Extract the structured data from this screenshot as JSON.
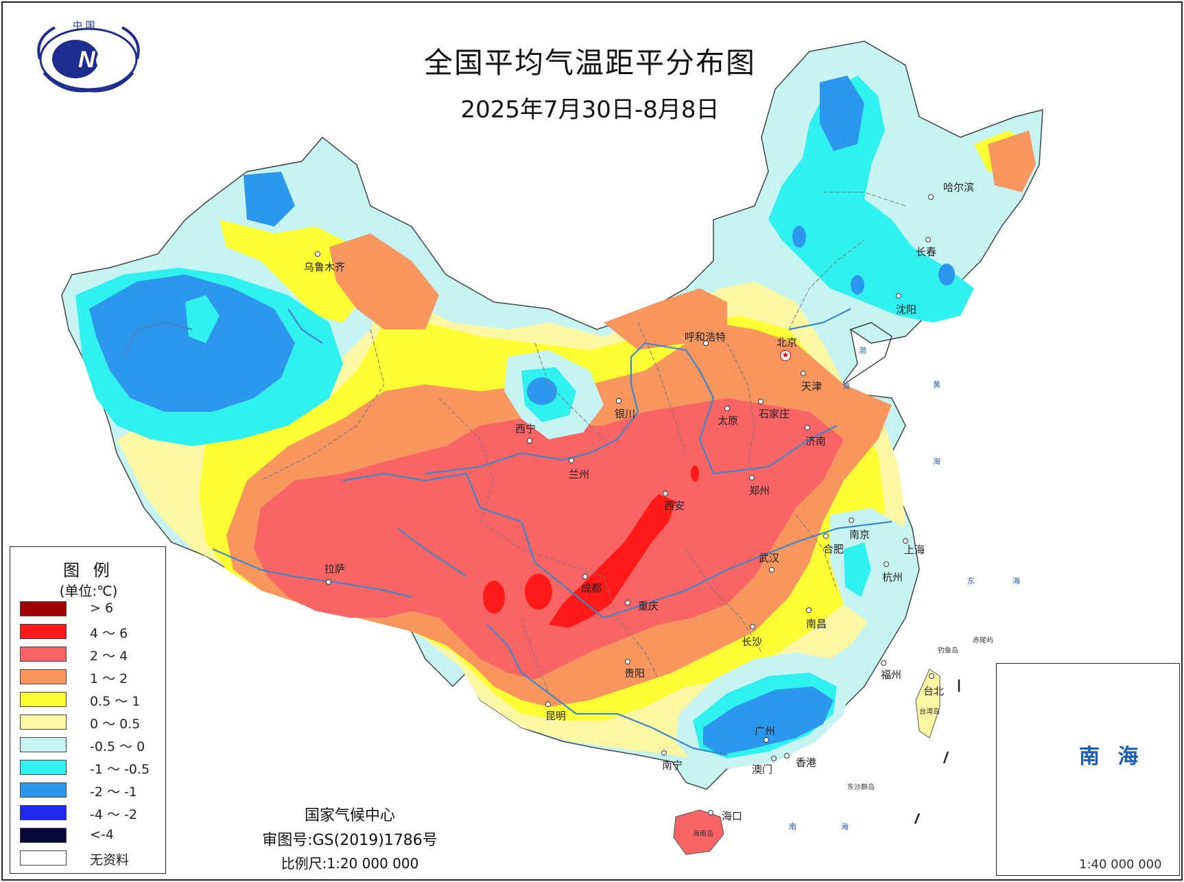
{
  "map": {
    "title": "全国平均气温距平分布图",
    "subtitle": "2025年7月30日-8月8日"
  },
  "logo": {
    "top_text": "中 国",
    "text": "NCC"
  },
  "cities": [
    {
      "name": "乌鲁木齐"
    },
    {
      "name": "呼和浩特"
    },
    {
      "name": "北京"
    },
    {
      "name": "天津"
    },
    {
      "name": "哈尔滨"
    },
    {
      "name": "长春"
    },
    {
      "name": "沈阳"
    },
    {
      "name": "银川"
    },
    {
      "name": "西宁"
    },
    {
      "name": "兰州"
    },
    {
      "name": "太原"
    },
    {
      "name": "石家庄"
    },
    {
      "name": "济南"
    },
    {
      "name": "郑州"
    },
    {
      "name": "西安"
    },
    {
      "name": "拉萨"
    },
    {
      "name": "成都"
    },
    {
      "name": "重庆"
    },
    {
      "name": "武汉"
    },
    {
      "name": "合肥"
    },
    {
      "name": "南京"
    },
    {
      "name": "上海"
    },
    {
      "name": "杭州"
    },
    {
      "name": "南昌"
    },
    {
      "name": "长沙"
    },
    {
      "name": "贵阳"
    },
    {
      "name": "昆明"
    },
    {
      "name": "福州"
    },
    {
      "name": "台北"
    },
    {
      "name": "广州"
    },
    {
      "name": "南宁"
    },
    {
      "name": "澳门"
    },
    {
      "name": "香港"
    },
    {
      "name": "海口"
    }
  ],
  "islands": {
    "taiwan": "台湾岛",
    "hainan": "海南岛",
    "diaoyu": "钓鱼岛",
    "chiwei": "赤尾屿",
    "dongsha": "东沙群岛"
  },
  "seas": {
    "bohai": "渤",
    "bohai2": "海",
    "huanghai": "黄",
    "huanghai2": "海",
    "donghai": "东",
    "donghai2": "海",
    "nanhai": "南",
    "nanhai2": "海"
  },
  "legend": {
    "title": "图 例",
    "unit": "(单位:℃)",
    "items": [
      {
        "label": "> 6",
        "color": "#a00000"
      },
      {
        "label": "4 ～ 6",
        "color": "#ff1a1a"
      },
      {
        "label": "2 ～ 4",
        "color": "#fa6464"
      },
      {
        "label": "1 ～ 2",
        "color": "#f7965e"
      },
      {
        "label": "0.5 ～ 1",
        "color": "#ffff33"
      },
      {
        "label": "0 ～ 0.5",
        "color": "#fbf7a4"
      },
      {
        "label": "-0.5 ～ 0",
        "color": "#c5f4f2"
      },
      {
        "label": "-1 ～ -0.5",
        "color": "#30f0f0"
      },
      {
        "label": "-2 ～ -1",
        "color": "#2d97ee"
      },
      {
        "label": "-4 ～ -2",
        "color": "#1e28ef"
      },
      {
        "label": "<-4",
        "color": "#07073a"
      },
      {
        "label": "无资料",
        "color": "#ffffff"
      }
    ]
  },
  "credits": {
    "agency": "国家气候中心",
    "approval": "审图号:GS(2019)1786号",
    "scale": "比例尺:1:20 000 000"
  },
  "inset": {
    "title": "南 海",
    "scale": "1:40 000 000"
  }
}
